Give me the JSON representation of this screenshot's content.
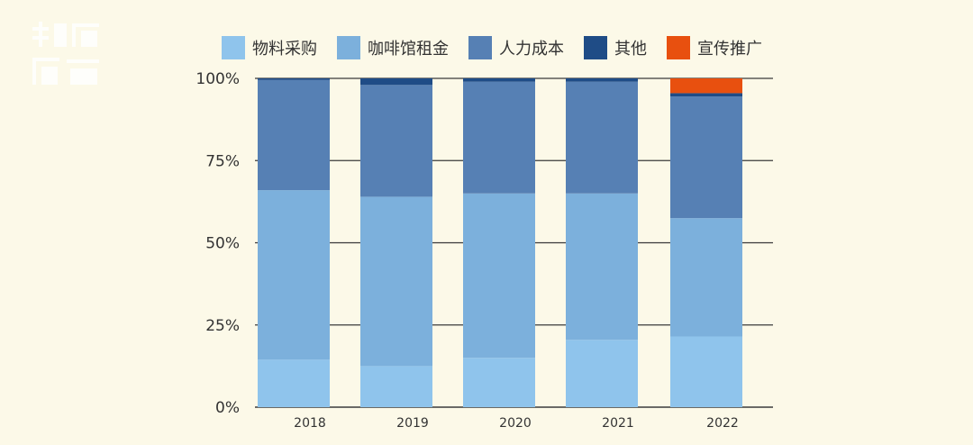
{
  "chart_data": {
    "type": "bar",
    "stacked": true,
    "normalized": true,
    "categories": [
      "2018",
      "2019",
      "2020",
      "2021",
      "2022"
    ],
    "series": [
      {
        "name": "物料采购",
        "color": "#8fc4ec",
        "values": [
          14.5,
          12.5,
          15,
          20.5,
          21.5
        ]
      },
      {
        "name": "咖啡馆租金",
        "color": "#7cb0dc",
        "values": [
          51.5,
          51.5,
          50,
          44.5,
          36
        ]
      },
      {
        "name": "人力成本",
        "color": "#5680b4",
        "values": [
          33.5,
          34,
          34,
          34,
          37
        ]
      },
      {
        "name": "其他",
        "color": "#1f4c86",
        "values": [
          0.5,
          2,
          1,
          1,
          1
        ]
      },
      {
        "name": "宣传推广",
        "color": "#e8500f",
        "values": [
          0,
          0,
          0,
          0,
          4.5
        ]
      }
    ],
    "ylim": [
      0,
      100
    ],
    "yticks": [
      "0%",
      "25%",
      "50%",
      "75%",
      "100%"
    ],
    "grid": true,
    "legend_position": "top"
  }
}
